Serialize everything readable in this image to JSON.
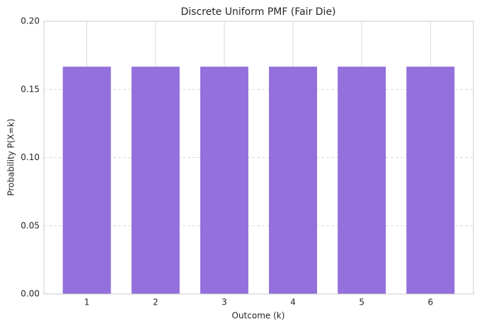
{
  "chart_data": {
    "type": "bar",
    "title": "Discrete Uniform PMF (Fair Die)",
    "x_label": "Outcome (k)",
    "y_label": "Probability P(X=k)",
    "categories": [
      "1",
      "2",
      "3",
      "4",
      "5",
      "6"
    ],
    "values": [
      0.1667,
      0.1667,
      0.1667,
      0.1667,
      0.1667,
      0.1667
    ],
    "color": "#9370db",
    "ylim": [
      0,
      0.2
    ],
    "yticks": [
      {
        "value": 0,
        "label": "0.00"
      },
      {
        "value": 0.05,
        "label": "0.05"
      },
      {
        "value": 0.1,
        "label": "0.10"
      },
      {
        "value": 0.15,
        "label": "0.15"
      },
      {
        "value": 0.2,
        "label": "0.20"
      }
    ],
    "grid": true
  }
}
